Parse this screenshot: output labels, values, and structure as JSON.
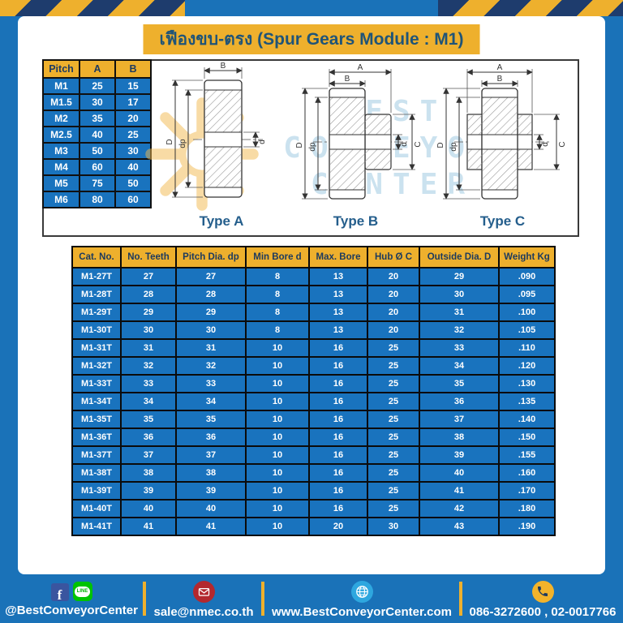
{
  "title": "เฟืองขบ-ตรง (Spur Gears Module : M1)",
  "pitch_table": {
    "headers": [
      "Pitch",
      "A",
      "B"
    ],
    "rows": [
      [
        "M1",
        "25",
        "15"
      ],
      [
        "M1.5",
        "30",
        "17"
      ],
      [
        "M2",
        "35",
        "20"
      ],
      [
        "M2.5",
        "40",
        "25"
      ],
      [
        "M3",
        "50",
        "30"
      ],
      [
        "M4",
        "60",
        "40"
      ],
      [
        "M5",
        "75",
        "50"
      ],
      [
        "M6",
        "80",
        "60"
      ]
    ]
  },
  "gear_types": {
    "a": "Type A",
    "b": "Type B",
    "c": "Type C"
  },
  "dim_labels": {
    "A": "A",
    "B": "B",
    "D": "D",
    "dp": "dp",
    "d": "d",
    "C": "C"
  },
  "watermark": {
    "line1": "BEST",
    "line2": "CONVEYOR",
    "line3": "CENTER"
  },
  "spec_table": {
    "headers": [
      "Cat. No.",
      "No. Teeth",
      "Pitch Dia. dp",
      "Min Bore d",
      "Max. Bore",
      "Hub Ø C",
      "Outside Dia. D",
      "Weight Kg"
    ],
    "rows": [
      [
        "M1-27T",
        "27",
        "27",
        "8",
        "13",
        "20",
        "29",
        ".090"
      ],
      [
        "M1-28T",
        "28",
        "28",
        "8",
        "13",
        "20",
        "30",
        ".095"
      ],
      [
        "M1-29T",
        "29",
        "29",
        "8",
        "13",
        "20",
        "31",
        ".100"
      ],
      [
        "M1-30T",
        "30",
        "30",
        "8",
        "13",
        "20",
        "32",
        ".105"
      ],
      [
        "M1-31T",
        "31",
        "31",
        "10",
        "16",
        "25",
        "33",
        ".110"
      ],
      [
        "M1-32T",
        "32",
        "32",
        "10",
        "16",
        "25",
        "34",
        ".120"
      ],
      [
        "M1-33T",
        "33",
        "33",
        "10",
        "16",
        "25",
        "35",
        ".130"
      ],
      [
        "M1-34T",
        "34",
        "34",
        "10",
        "16",
        "25",
        "36",
        ".135"
      ],
      [
        "M1-35T",
        "35",
        "35",
        "10",
        "16",
        "25",
        "37",
        ".140"
      ],
      [
        "M1-36T",
        "36",
        "36",
        "10",
        "16",
        "25",
        "38",
        ".150"
      ],
      [
        "M1-37T",
        "37",
        "37",
        "10",
        "16",
        "25",
        "39",
        ".155"
      ],
      [
        "M1-38T",
        "38",
        "38",
        "10",
        "16",
        "25",
        "40",
        ".160"
      ],
      [
        "M1-39T",
        "39",
        "39",
        "10",
        "16",
        "25",
        "41",
        ".170"
      ],
      [
        "M1-40T",
        "40",
        "40",
        "10",
        "16",
        "25",
        "42",
        ".180"
      ],
      [
        "M1-41T",
        "41",
        "41",
        "10",
        "20",
        "30",
        "43",
        ".190"
      ]
    ]
  },
  "footer": {
    "facebook_f": "f",
    "line_badge": "LINE",
    "facebook_handle": "@BestConveyorCenter",
    "email": "sale@nmec.co.th",
    "website": "www.BestConveyorCenter.com",
    "phone": "086-3272600 , 02-0017766"
  },
  "colors": {
    "page_blue": "#1a72b8",
    "accent_yellow": "#eeb02d",
    "stripe_navy": "#1e3c6d",
    "cell_blue": "#1973be",
    "header_text_navy": "#1c3a5e",
    "title_text": "#1f5478",
    "type_label_blue": "#245e8c",
    "line_green": "#00c300",
    "facebook_blue": "#3a559f",
    "mail_red": "#b3282e",
    "globe_blue": "#2ea7df"
  }
}
